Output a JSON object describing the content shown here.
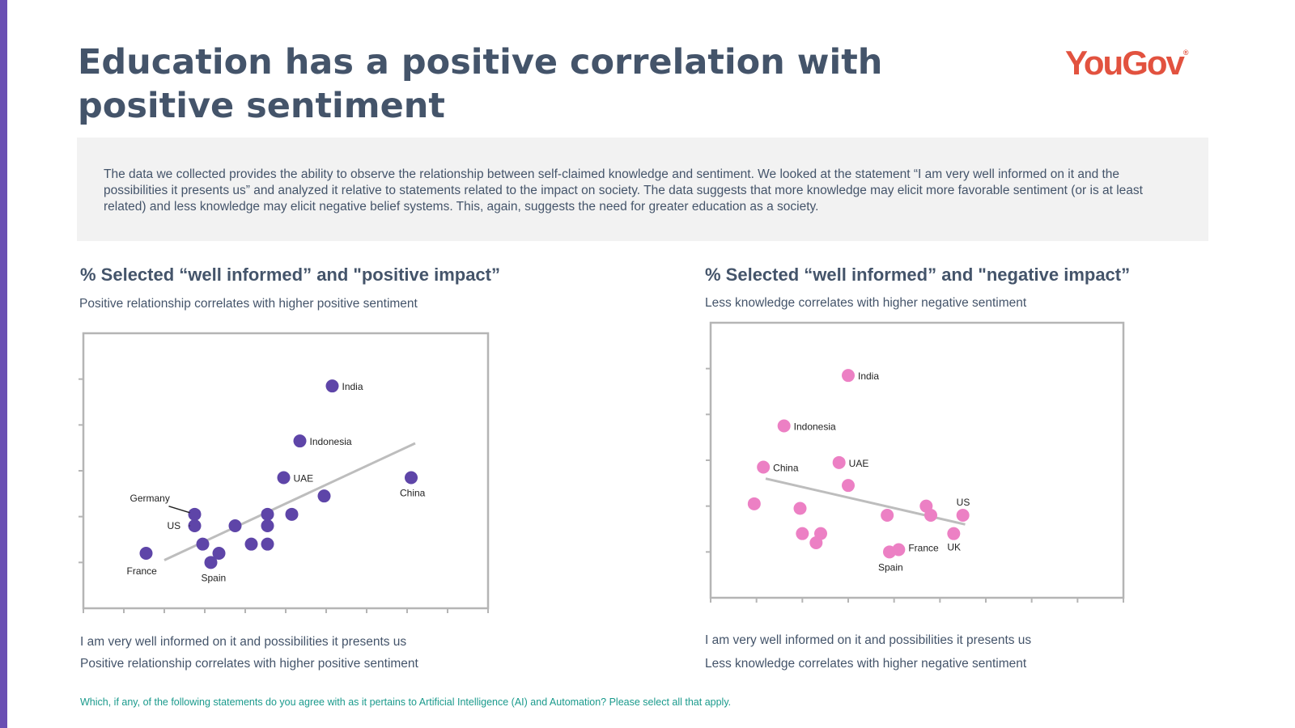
{
  "title": "Education has a positive correlation with positive sentiment",
  "logo": {
    "text": "YouGov",
    "mark": "®"
  },
  "intro": "The data we collected provides the ability to observe the relationship between self-claimed knowledge and sentiment. We looked at the statement “I am very well informed on it and the possibilities it presents us” and analyzed it relative to statements related to the impact on society. The data suggests that more knowledge may elicit more favorable sentiment (or is at least related) and less knowledge may elicit negative belief systems. This, again, suggests the need for greater education as a society.",
  "left": {
    "title": "% Selected “well informed” and \"positive impact”",
    "subtitle": "Positive relationship correlates with higher positive sentiment",
    "xcaption": "I am very well informed on it and possibilities it presents us",
    "ycaption": "Positive relationship correlates with higher positive sentiment"
  },
  "right": {
    "title": "% Selected “well informed” and \"negative impact”",
    "subtitle": "Less knowledge correlates with higher negative sentiment",
    "xcaption": "I am very well informed on it and possibilities it presents us",
    "ycaption": "Less knowledge correlates with higher negative sentiment"
  },
  "footnote": "Which, if any, of the following statements do you agree with as it pertains to Artificial Intelligence (AI) and Automation? Please select all that apply.",
  "colors": {
    "accent_bar": "#6a4fb3",
    "positive_points": "#5e45a8",
    "negative_points": "#ec80c4",
    "trendline": "#bdbdbd",
    "logo": "#e2523f",
    "footnote": "#1a9a8c"
  },
  "chart_data": [
    {
      "type": "scatter",
      "title": "% Selected “well informed” and \"positive impact”",
      "xlabel": "I am very well informed on it and possibilities it presents us",
      "ylabel": "Positive relationship correlates with higher positive sentiment",
      "xlim": [
        0,
        10
      ],
      "ylim": [
        0,
        6
      ],
      "xticks": 10,
      "yticks": 6,
      "points": [
        {
          "x": 1.55,
          "y": 1.2,
          "label": "France"
        },
        {
          "x": 2.75,
          "y": 2.05,
          "label": "Germany"
        },
        {
          "x": 2.75,
          "y": 1.8,
          "label": "US"
        },
        {
          "x": 2.95,
          "y": 1.4,
          "label": ""
        },
        {
          "x": 3.15,
          "y": 1.0,
          "label": "Spain"
        },
        {
          "x": 3.35,
          "y": 1.2,
          "label": ""
        },
        {
          "x": 3.75,
          "y": 1.8,
          "label": ""
        },
        {
          "x": 4.15,
          "y": 1.4,
          "label": ""
        },
        {
          "x": 4.55,
          "y": 1.4,
          "label": ""
        },
        {
          "x": 4.55,
          "y": 1.8,
          "label": ""
        },
        {
          "x": 4.55,
          "y": 2.05,
          "label": ""
        },
        {
          "x": 5.15,
          "y": 2.05,
          "label": ""
        },
        {
          "x": 4.95,
          "y": 2.85,
          "label": "UAE"
        },
        {
          "x": 5.35,
          "y": 3.65,
          "label": "Indonesia"
        },
        {
          "x": 5.95,
          "y": 2.45,
          "label": ""
        },
        {
          "x": 6.15,
          "y": 4.85,
          "label": "India"
        },
        {
          "x": 8.1,
          "y": 2.85,
          "label": "China"
        }
      ],
      "trendline": {
        "x": [
          2.0,
          8.2
        ],
        "y": [
          1.05,
          3.6
        ]
      }
    },
    {
      "type": "scatter",
      "title": "% Selected “well informed” and \"negative impact”",
      "xlabel": "I am very well informed on it and possibilities it presents us",
      "ylabel": "Less knowledge correlates with higher negative sentiment",
      "xlim": [
        0,
        9
      ],
      "ylim": [
        0,
        6
      ],
      "xticks": 9,
      "yticks": 6,
      "points": [
        {
          "x": 3.0,
          "y": 4.85,
          "label": "India"
        },
        {
          "x": 1.6,
          "y": 3.75,
          "label": "Indonesia"
        },
        {
          "x": 1.15,
          "y": 2.85,
          "label": "China"
        },
        {
          "x": 2.8,
          "y": 2.95,
          "label": "UAE"
        },
        {
          "x": 3.0,
          "y": 2.45,
          "label": ""
        },
        {
          "x": 0.95,
          "y": 2.05,
          "label": ""
        },
        {
          "x": 1.95,
          "y": 1.95,
          "label": ""
        },
        {
          "x": 2.0,
          "y": 1.4,
          "label": ""
        },
        {
          "x": 2.4,
          "y": 1.4,
          "label": ""
        },
        {
          "x": 2.3,
          "y": 1.2,
          "label": ""
        },
        {
          "x": 3.85,
          "y": 1.8,
          "label": ""
        },
        {
          "x": 4.7,
          "y": 2.0,
          "label": ""
        },
        {
          "x": 4.8,
          "y": 1.8,
          "label": ""
        },
        {
          "x": 5.5,
          "y": 1.8,
          "label": "US"
        },
        {
          "x": 3.9,
          "y": 1.0,
          "label": "Spain"
        },
        {
          "x": 4.1,
          "y": 1.05,
          "label": "France"
        },
        {
          "x": 5.3,
          "y": 1.4,
          "label": "UK"
        }
      ],
      "trendline": {
        "x": [
          1.2,
          5.55
        ],
        "y": [
          2.6,
          1.6
        ]
      }
    }
  ]
}
